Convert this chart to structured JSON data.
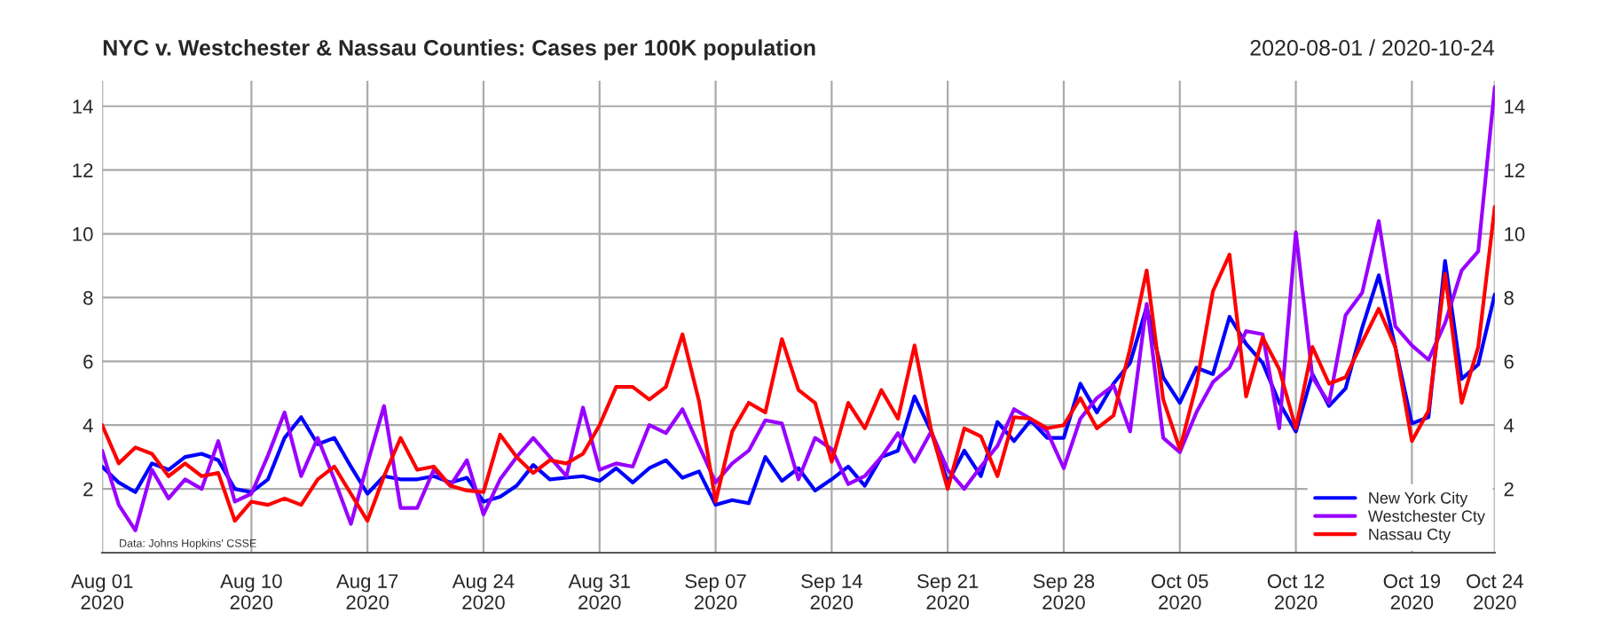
{
  "chart_data": {
    "type": "line",
    "title": "NYC v. Westchester & Nassau Counties: Cases per 100K population",
    "subtitle": "2020-08-01 / 2020-10-24",
    "x": [
      "2020-08-01",
      "2020-08-02",
      "2020-08-03",
      "2020-08-04",
      "2020-08-05",
      "2020-08-06",
      "2020-08-07",
      "2020-08-08",
      "2020-08-09",
      "2020-08-10",
      "2020-08-11",
      "2020-08-12",
      "2020-08-13",
      "2020-08-14",
      "2020-08-15",
      "2020-08-16",
      "2020-08-17",
      "2020-08-18",
      "2020-08-19",
      "2020-08-20",
      "2020-08-21",
      "2020-08-22",
      "2020-08-23",
      "2020-08-24",
      "2020-08-25",
      "2020-08-26",
      "2020-08-27",
      "2020-08-28",
      "2020-08-29",
      "2020-08-30",
      "2020-08-31",
      "2020-09-01",
      "2020-09-02",
      "2020-09-03",
      "2020-09-04",
      "2020-09-05",
      "2020-09-06",
      "2020-09-07",
      "2020-09-08",
      "2020-09-09",
      "2020-09-10",
      "2020-09-11",
      "2020-09-12",
      "2020-09-13",
      "2020-09-14",
      "2020-09-15",
      "2020-09-16",
      "2020-09-17",
      "2020-09-18",
      "2020-09-19",
      "2020-09-20",
      "2020-09-21",
      "2020-09-22",
      "2020-09-23",
      "2020-09-24",
      "2020-09-25",
      "2020-09-26",
      "2020-09-27",
      "2020-09-28",
      "2020-09-29",
      "2020-09-30",
      "2020-10-01",
      "2020-10-02",
      "2020-10-03",
      "2020-10-04",
      "2020-10-05",
      "2020-10-06",
      "2020-10-07",
      "2020-10-08",
      "2020-10-09",
      "2020-10-10",
      "2020-10-11",
      "2020-10-12",
      "2020-10-13",
      "2020-10-14",
      "2020-10-15",
      "2020-10-16",
      "2020-10-17",
      "2020-10-18",
      "2020-10-19",
      "2020-10-20",
      "2020-10-21",
      "2020-10-22",
      "2020-10-23",
      "2020-10-24"
    ],
    "series": [
      {
        "name": "New York City",
        "color": "#0000ff",
        "values": [
          2.7,
          2.2,
          1.9,
          2.8,
          2.6,
          3.0,
          3.1,
          2.9,
          2.0,
          1.9,
          2.3,
          3.6,
          4.25,
          3.4,
          3.6,
          2.7,
          1.85,
          2.4,
          2.3,
          2.3,
          2.4,
          2.2,
          2.35,
          1.6,
          1.75,
          2.1,
          2.75,
          2.3,
          2.35,
          2.4,
          2.25,
          2.65,
          2.2,
          2.65,
          2.9,
          2.35,
          2.55,
          1.5,
          1.65,
          1.55,
          3.0,
          2.25,
          2.65,
          1.95,
          2.3,
          2.7,
          2.1,
          3.0,
          3.2,
          4.9,
          3.8,
          2.2,
          3.2,
          2.4,
          4.1,
          3.5,
          4.15,
          3.6,
          3.6,
          5.3,
          4.4,
          5.3,
          5.95,
          7.7,
          5.5,
          4.7,
          5.8,
          5.6,
          7.4,
          6.55,
          5.95,
          4.7,
          3.8,
          5.6,
          4.6,
          5.15,
          7.05,
          8.7,
          6.45,
          4.05,
          4.25,
          9.15,
          5.45,
          5.9,
          8.1
        ]
      },
      {
        "name": "Westchester Cty",
        "color": "#9900ff",
        "values": [
          3.2,
          1.5,
          0.7,
          2.6,
          1.7,
          2.3,
          2.0,
          3.5,
          1.6,
          1.85,
          3.05,
          4.4,
          2.4,
          3.6,
          2.3,
          0.9,
          2.8,
          4.6,
          1.4,
          1.4,
          2.6,
          2.1,
          2.9,
          1.2,
          2.3,
          3.0,
          3.6,
          3.0,
          2.4,
          4.55,
          2.6,
          2.8,
          2.7,
          4.0,
          3.75,
          4.5,
          3.35,
          2.2,
          2.8,
          3.2,
          4.15,
          4.05,
          2.3,
          3.6,
          3.25,
          2.15,
          2.4,
          3.0,
          3.75,
          2.85,
          3.8,
          2.6,
          2.0,
          2.7,
          3.35,
          4.5,
          4.2,
          3.8,
          2.65,
          4.2,
          4.85,
          5.25,
          3.8,
          7.8,
          3.6,
          3.15,
          4.4,
          5.35,
          5.8,
          6.95,
          6.85,
          3.9,
          10.05,
          5.5,
          4.7,
          7.45,
          8.15,
          10.4,
          7.1,
          6.5,
          6.05,
          7.2,
          8.85,
          9.45,
          14.6
        ]
      },
      {
        "name": "Nassau Cty",
        "color": "#ff0000",
        "values": [
          4.0,
          2.8,
          3.3,
          3.1,
          2.4,
          2.8,
          2.4,
          2.5,
          1.0,
          1.6,
          1.5,
          1.7,
          1.5,
          2.3,
          2.7,
          1.85,
          1.0,
          2.4,
          3.6,
          2.6,
          2.7,
          2.1,
          1.95,
          1.9,
          3.7,
          3.0,
          2.5,
          2.9,
          2.8,
          3.1,
          4.0,
          5.2,
          5.2,
          4.8,
          5.2,
          6.85,
          4.75,
          1.6,
          3.8,
          4.7,
          4.4,
          6.7,
          5.1,
          4.7,
          2.85,
          4.7,
          3.9,
          5.1,
          4.2,
          6.5,
          3.85,
          2.0,
          3.9,
          3.65,
          2.4,
          4.25,
          4.2,
          3.9,
          4.0,
          4.85,
          3.9,
          4.3,
          6.4,
          8.85,
          4.8,
          3.25,
          5.25,
          8.2,
          9.35,
          4.9,
          6.75,
          5.75,
          3.9,
          6.45,
          5.3,
          5.5,
          6.6,
          7.65,
          6.45,
          3.5,
          4.45,
          8.75,
          4.7,
          6.45,
          10.85
        ]
      }
    ],
    "xlim": [
      "2020-08-01",
      "2020-10-24"
    ],
    "xticks": [
      {
        "value": "2020-08-01",
        "label": "Aug 01\n2020"
      },
      {
        "value": "2020-08-10",
        "label": "Aug 10\n2020"
      },
      {
        "value": "2020-08-17",
        "label": "Aug 17\n2020"
      },
      {
        "value": "2020-08-24",
        "label": "Aug 24\n2020"
      },
      {
        "value": "2020-08-31",
        "label": "Aug 31\n2020"
      },
      {
        "value": "2020-09-07",
        "label": "Sep 07\n2020"
      },
      {
        "value": "2020-09-14",
        "label": "Sep 14\n2020"
      },
      {
        "value": "2020-09-21",
        "label": "Sep 21\n2020"
      },
      {
        "value": "2020-09-28",
        "label": "Sep 28\n2020"
      },
      {
        "value": "2020-10-05",
        "label": "Oct 05\n2020"
      },
      {
        "value": "2020-10-12",
        "label": "Oct 12\n2020"
      },
      {
        "value": "2020-10-19",
        "label": "Oct 19\n2020"
      },
      {
        "value": "2020-10-24",
        "label": "Oct 24\n2020"
      }
    ],
    "ylim": [
      0,
      14.8
    ],
    "yticks": [
      2,
      4,
      6,
      8,
      10,
      12,
      14
    ],
    "y2lim": [
      0,
      14.8
    ],
    "y2ticks": [
      2,
      4,
      6,
      8,
      10,
      12,
      14
    ],
    "grid": true,
    "legend": "bottom right",
    "annotations": [
      "Data: Johns Hopkins' CSSE"
    ]
  }
}
